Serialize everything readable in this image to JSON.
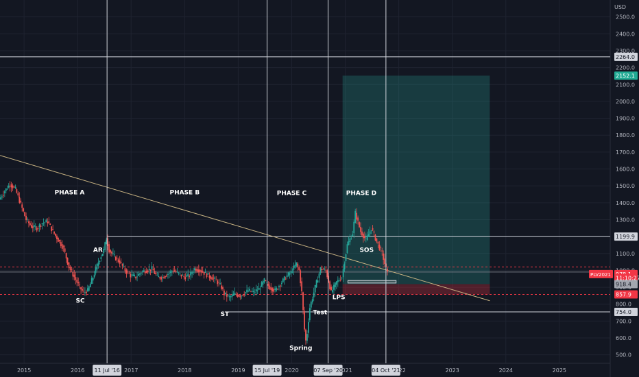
{
  "chart_data": {
    "type": "line",
    "currency": "USD",
    "y_axis": {
      "min": 450,
      "max": 2600,
      "ticks": [
        500,
        600,
        700,
        800,
        900,
        1000,
        1100,
        1200,
        1300,
        1400,
        1500,
        1600,
        1700,
        1800,
        1900,
        2000,
        2100,
        2200,
        2300,
        2400,
        2500
      ],
      "tick_labels": [
        "500.0",
        "600.0",
        "700.0",
        "800.0",
        "900.0",
        "1000.0",
        "1100.0",
        "1200.0",
        "1300.0",
        "1400.0",
        "1500.0",
        "1600.0",
        "1700.0",
        "1800.0",
        "1900.0",
        "2000.0",
        "2100.0",
        "2200.0",
        "2300.0",
        "2400.0",
        "2500.0"
      ]
    },
    "x_axis": {
      "min": 2014.55,
      "max": 2025.95,
      "ticks": [
        2015,
        2016,
        2017,
        2018,
        2019,
        2020,
        2021,
        2022,
        2023,
        2024,
        2025
      ],
      "tick_labels": [
        "2015",
        "2016",
        "2017",
        "2018",
        "2019",
        "2020",
        "2021",
        "2022",
        "2023",
        "2024",
        "2025"
      ]
    },
    "series": [
      {
        "values": [
          [
            2014.55,
            1420
          ],
          [
            2014.65,
            1470
          ],
          [
            2014.75,
            1510
          ],
          [
            2014.85,
            1480
          ],
          [
            2014.95,
            1390
          ],
          [
            2015.05,
            1300
          ],
          [
            2015.15,
            1260
          ],
          [
            2015.25,
            1250
          ],
          [
            2015.35,
            1280
          ],
          [
            2015.45,
            1290
          ],
          [
            2015.55,
            1230
          ],
          [
            2015.65,
            1180
          ],
          [
            2015.75,
            1130
          ],
          [
            2015.85,
            1020
          ],
          [
            2015.95,
            960
          ],
          [
            2016.05,
            900
          ],
          [
            2016.12,
            870
          ],
          [
            2016.2,
            880
          ],
          [
            2016.3,
            960
          ],
          [
            2016.4,
            1050
          ],
          [
            2016.5,
            1120
          ],
          [
            2016.55,
            1190
          ],
          [
            2016.6,
            1120
          ],
          [
            2016.7,
            1080
          ],
          [
            2016.8,
            1050
          ],
          [
            2016.9,
            1000
          ],
          [
            2017.0,
            970
          ],
          [
            2017.1,
            960
          ],
          [
            2017.2,
            990
          ],
          [
            2017.3,
            1000
          ],
          [
            2017.4,
            1010
          ],
          [
            2017.5,
            960
          ],
          [
            2017.6,
            960
          ],
          [
            2017.7,
            980
          ],
          [
            2017.8,
            1000
          ],
          [
            2017.9,
            980
          ],
          [
            2018.0,
            960
          ],
          [
            2018.1,
            970
          ],
          [
            2018.2,
            1010
          ],
          [
            2018.3,
            1000
          ],
          [
            2018.4,
            980
          ],
          [
            2018.5,
            960
          ],
          [
            2018.6,
            940
          ],
          [
            2018.7,
            900
          ],
          [
            2018.75,
            860
          ],
          [
            2018.85,
            840
          ],
          [
            2018.95,
            860
          ],
          [
            2019.05,
            850
          ],
          [
            2019.2,
            880
          ],
          [
            2019.3,
            870
          ],
          [
            2019.4,
            890
          ],
          [
            2019.5,
            940
          ],
          [
            2019.6,
            900
          ],
          [
            2019.7,
            880
          ],
          [
            2019.8,
            920
          ],
          [
            2019.9,
            960
          ],
          [
            2020.0,
            990
          ],
          [
            2020.1,
            1040
          ],
          [
            2020.15,
            1000
          ],
          [
            2020.2,
            870
          ],
          [
            2020.25,
            650
          ],
          [
            2020.28,
            570
          ],
          [
            2020.35,
            780
          ],
          [
            2020.45,
            900
          ],
          [
            2020.55,
            1010
          ],
          [
            2020.65,
            1000
          ],
          [
            2020.75,
            870
          ],
          [
            2020.85,
            930
          ],
          [
            2020.95,
            960
          ],
          [
            2021.05,
            1150
          ],
          [
            2021.15,
            1220
          ],
          [
            2021.2,
            1340
          ],
          [
            2021.3,
            1230
          ],
          [
            2021.4,
            1180
          ],
          [
            2021.5,
            1250
          ],
          [
            2021.6,
            1170
          ],
          [
            2021.7,
            1100
          ],
          [
            2021.75,
            1040
          ],
          [
            2021.8,
            980
          ]
        ]
      }
    ],
    "trendline": [
      [
        2014.55,
        1680
      ],
      [
        2023.7,
        820
      ]
    ],
    "markers": {
      "resistance_level": 1199.9,
      "support_level": 754.0,
      "upper_dashed_level": 1020,
      "lower_dashed_level": 857.9,
      "grey_level": 990,
      "horizontal_crosshair_value": 2264.0
    },
    "position_box": {
      "x_start": 2020.95,
      "x_end": 2023.7,
      "target": 2152.1,
      "entry": 918.4,
      "stop": 857.9
    },
    "entry_range_box": {
      "x_start": 2021.05,
      "x_end": 2021.95,
      "low": 925,
      "high": 940
    },
    "crosshairs": [
      {
        "x": 2016.55,
        "label": "11 Jul '16"
      },
      {
        "x": 2019.54,
        "label": "15 Jul '19"
      },
      {
        "x": 2020.68,
        "label": "07 Sep '20"
      },
      {
        "x": 2021.76,
        "label": "04 Oct '21"
      }
    ],
    "annotations": [
      {
        "text": "PHASE A",
        "x": 2015.85,
        "y": 1450
      },
      {
        "text": "PHASE B",
        "x": 2018.0,
        "y": 1450
      },
      {
        "text": "PHASE C",
        "x": 2020.0,
        "y": 1445
      },
      {
        "text": "PHASE D",
        "x": 2021.3,
        "y": 1445
      },
      {
        "text": "SC",
        "x": 2016.05,
        "y": 810
      },
      {
        "text": "AR",
        "x": 2016.38,
        "y": 1110
      },
      {
        "text": "ST",
        "x": 2018.75,
        "y": 730
      },
      {
        "text": "Spring",
        "x": 2020.17,
        "y": 530
      },
      {
        "text": "Test",
        "x": 2020.53,
        "y": 740
      },
      {
        "text": "LPS",
        "x": 2020.88,
        "y": 830
      },
      {
        "text": "SOS",
        "x": 2021.4,
        "y": 1110
      }
    ],
    "price_labels": [
      {
        "text": "2264.0",
        "value": 2264.0,
        "color": "#d1d4dc",
        "text_color": "#131722"
      },
      {
        "text": "2152.1",
        "value": 2152.1,
        "color": "#22ab94",
        "text_color": "#ffffff"
      },
      {
        "text": "1199.9",
        "value": 1199.9,
        "color": "#d1d4dc",
        "text_color": "#131722"
      },
      {
        "text": "978.1",
        "value": 978.1,
        "color": "#f23645",
        "text_color": "#ffffff"
      },
      {
        "text": "11:10:27",
        "value": 955,
        "color": "#f23645",
        "text_color": "#ffffff"
      },
      {
        "text": "918.4",
        "value": 918.4,
        "color": "#a3a6af",
        "text_color": "#131722"
      },
      {
        "text": "857.9",
        "value": 857.9,
        "color": "#f23645",
        "text_color": "#ffffff"
      },
      {
        "text": "754.0",
        "value": 754.0,
        "color": "#d1d4dc",
        "text_color": "#131722"
      }
    ],
    "symbol_tag": "PLV2021",
    "colors": {
      "background": "#131722",
      "grid": "#1f2330",
      "candle_up": "#26a69a",
      "candle_down": "#ef5350",
      "trendline": "#c9b483",
      "target_zone": "rgba(38,166,154,0.25)",
      "stop_zone": "rgba(242,54,69,0.28)",
      "dashed_line": "#f23645"
    }
  }
}
